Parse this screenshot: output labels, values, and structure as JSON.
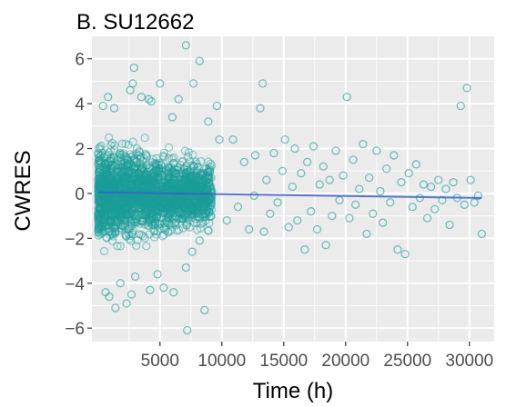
{
  "chart_data": {
    "type": "scatter",
    "title": "B. SU12662",
    "xlabel": "Time (h)",
    "ylabel": "CWRES",
    "xlim": [
      -500,
      32000
    ],
    "ylim": [
      -6.6,
      7.0
    ],
    "xticks": [
      5000,
      10000,
      15000,
      20000,
      25000,
      30000
    ],
    "xtick_labels": [
      "5000",
      "10000",
      "15000",
      "20000",
      "25000",
      "30000"
    ],
    "yticks": [
      -6,
      -4,
      -2,
      0,
      2,
      4,
      6
    ],
    "ytick_labels": [
      "−6",
      "−4",
      "−2",
      "0",
      "2",
      "4",
      "6"
    ],
    "grid": true,
    "legend": "none",
    "colors": {
      "panel_background": "#ebebeb",
      "grid": "#ffffff",
      "points": "#1a9e98",
      "trend_line": "#3d5fcf"
    },
    "dense_region": {
      "x_range": [
        0,
        9200
      ],
      "y_range": [
        -3.5,
        3.5
      ]
    },
    "points": [
      [
        600,
        -4.4
      ],
      [
        900,
        -4.6
      ],
      [
        1400,
        -5.1
      ],
      [
        1800,
        -4.0
      ],
      [
        2300,
        -4.9
      ],
      [
        2700,
        -4.5
      ],
      [
        3000,
        -3.7
      ],
      [
        4200,
        -4.3
      ],
      [
        4800,
        -3.6
      ],
      [
        5300,
        -4.2
      ],
      [
        7200,
        -6.1
      ],
      [
        8600,
        -5.2
      ],
      [
        6100,
        -4.4
      ],
      [
        7100,
        -3.3
      ],
      [
        7600,
        -2.6
      ],
      [
        8200,
        -2.1
      ],
      [
        400,
        3.9
      ],
      [
        800,
        4.3
      ],
      [
        1300,
        3.8
      ],
      [
        2600,
        4.6
      ],
      [
        2800,
        4.9
      ],
      [
        2900,
        5.6
      ],
      [
        3500,
        4.3
      ],
      [
        4100,
        4.2
      ],
      [
        4300,
        4.1
      ],
      [
        5000,
        4.9
      ],
      [
        6500,
        4.2
      ],
      [
        7100,
        6.6
      ],
      [
        7700,
        4.9
      ],
      [
        8200,
        5.9
      ],
      [
        9600,
        3.9
      ],
      [
        8900,
        3.2
      ],
      [
        6000,
        3.4
      ],
      [
        9800,
        2.4
      ],
      [
        10400,
        -1.2
      ],
      [
        10900,
        2.4
      ],
      [
        11300,
        -0.6
      ],
      [
        11800,
        1.4
      ],
      [
        12200,
        -1.6
      ],
      [
        12600,
        -0.1
      ],
      [
        12700,
        1.7
      ],
      [
        13100,
        3.8
      ],
      [
        13300,
        4.9
      ],
      [
        13400,
        -1.7
      ],
      [
        13600,
        0.6
      ],
      [
        13900,
        -0.9
      ],
      [
        14200,
        1.8
      ],
      [
        14500,
        -0.4
      ],
      [
        14900,
        1.0
      ],
      [
        15100,
        2.4
      ],
      [
        15400,
        -1.5
      ],
      [
        15700,
        0.3
      ],
      [
        15900,
        2.0
      ],
      [
        16100,
        -1.2
      ],
      [
        16400,
        0.9
      ],
      [
        16700,
        -2.5
      ],
      [
        16900,
        1.4
      ],
      [
        17200,
        -0.8
      ],
      [
        17400,
        2.1
      ],
      [
        17700,
        -1.6
      ],
      [
        17900,
        0.4
      ],
      [
        18200,
        1.2
      ],
      [
        18400,
        -2.3
      ],
      [
        18700,
        0.6
      ],
      [
        18900,
        -1.0
      ],
      [
        19200,
        1.9
      ],
      [
        19500,
        -0.3
      ],
      [
        19800,
        0.8
      ],
      [
        20100,
        4.3
      ],
      [
        20300,
        -1.1
      ],
      [
        20600,
        1.5
      ],
      [
        20800,
        -0.5
      ],
      [
        21100,
        0.2
      ],
      [
        21400,
        2.2
      ],
      [
        21700,
        -1.8
      ],
      [
        21900,
        0.7
      ],
      [
        22200,
        -0.9
      ],
      [
        22500,
        1.9
      ],
      [
        22800,
        0.1
      ],
      [
        23000,
        -1.3
      ],
      [
        23300,
        1.1
      ],
      [
        23600,
        -0.4
      ],
      [
        23900,
        1.7
      ],
      [
        24200,
        -2.5
      ],
      [
        24500,
        0.5
      ],
      [
        24800,
        -2.7
      ],
      [
        25100,
        0.9
      ],
      [
        25400,
        -0.6
      ],
      [
        25700,
        1.3
      ],
      [
        26000,
        -0.2
      ],
      [
        26300,
        0.4
      ],
      [
        26600,
        -1.1
      ],
      [
        26900,
        0.3
      ],
      [
        27200,
        -0.7
      ],
      [
        27500,
        0.6
      ],
      [
        27800,
        -0.3
      ],
      [
        28100,
        0.2
      ],
      [
        28400,
        -1.4
      ],
      [
        28700,
        0.5
      ],
      [
        29000,
        -0.2
      ],
      [
        29300,
        3.9
      ],
      [
        29600,
        -0.5
      ],
      [
        29800,
        4.7
      ],
      [
        30100,
        0.6
      ],
      [
        30400,
        -0.4
      ],
      [
        30700,
        -0.1
      ],
      [
        31000,
        -1.8
      ]
    ],
    "trend_line": {
      "x": [
        0,
        31000
      ],
      "y": [
        0.05,
        -0.2
      ]
    }
  }
}
